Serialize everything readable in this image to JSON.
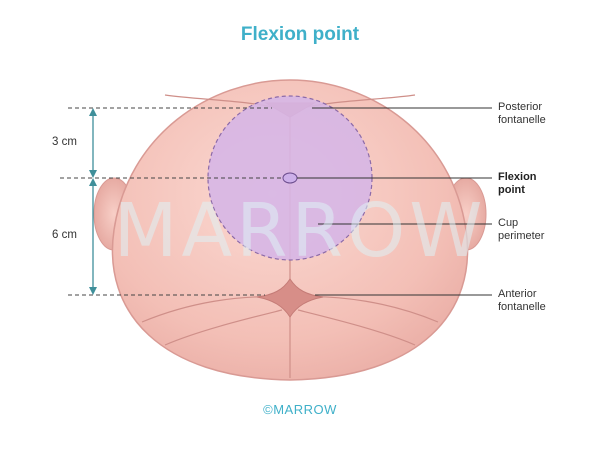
{
  "title": "Flexion point",
  "watermark": "MARROW",
  "copyright": "©MARROW",
  "measurements": {
    "upper": "3 cm",
    "lower": "6 cm"
  },
  "labels": {
    "posterior_fontanelle": [
      "Posterior",
      "fontanelle"
    ],
    "flexion_point": [
      "Flexion",
      "point"
    ],
    "cup_perimeter": [
      "Cup",
      "perimeter"
    ],
    "anterior_fontanelle": [
      "Anterior",
      "fontanelle"
    ]
  },
  "colors": {
    "title": "#3fb0c9",
    "skin": "#f6c8c0",
    "skin_outline": "#d99a94",
    "cup_fill": "#d6b6e6",
    "arrow": "#3f8f9a"
  }
}
